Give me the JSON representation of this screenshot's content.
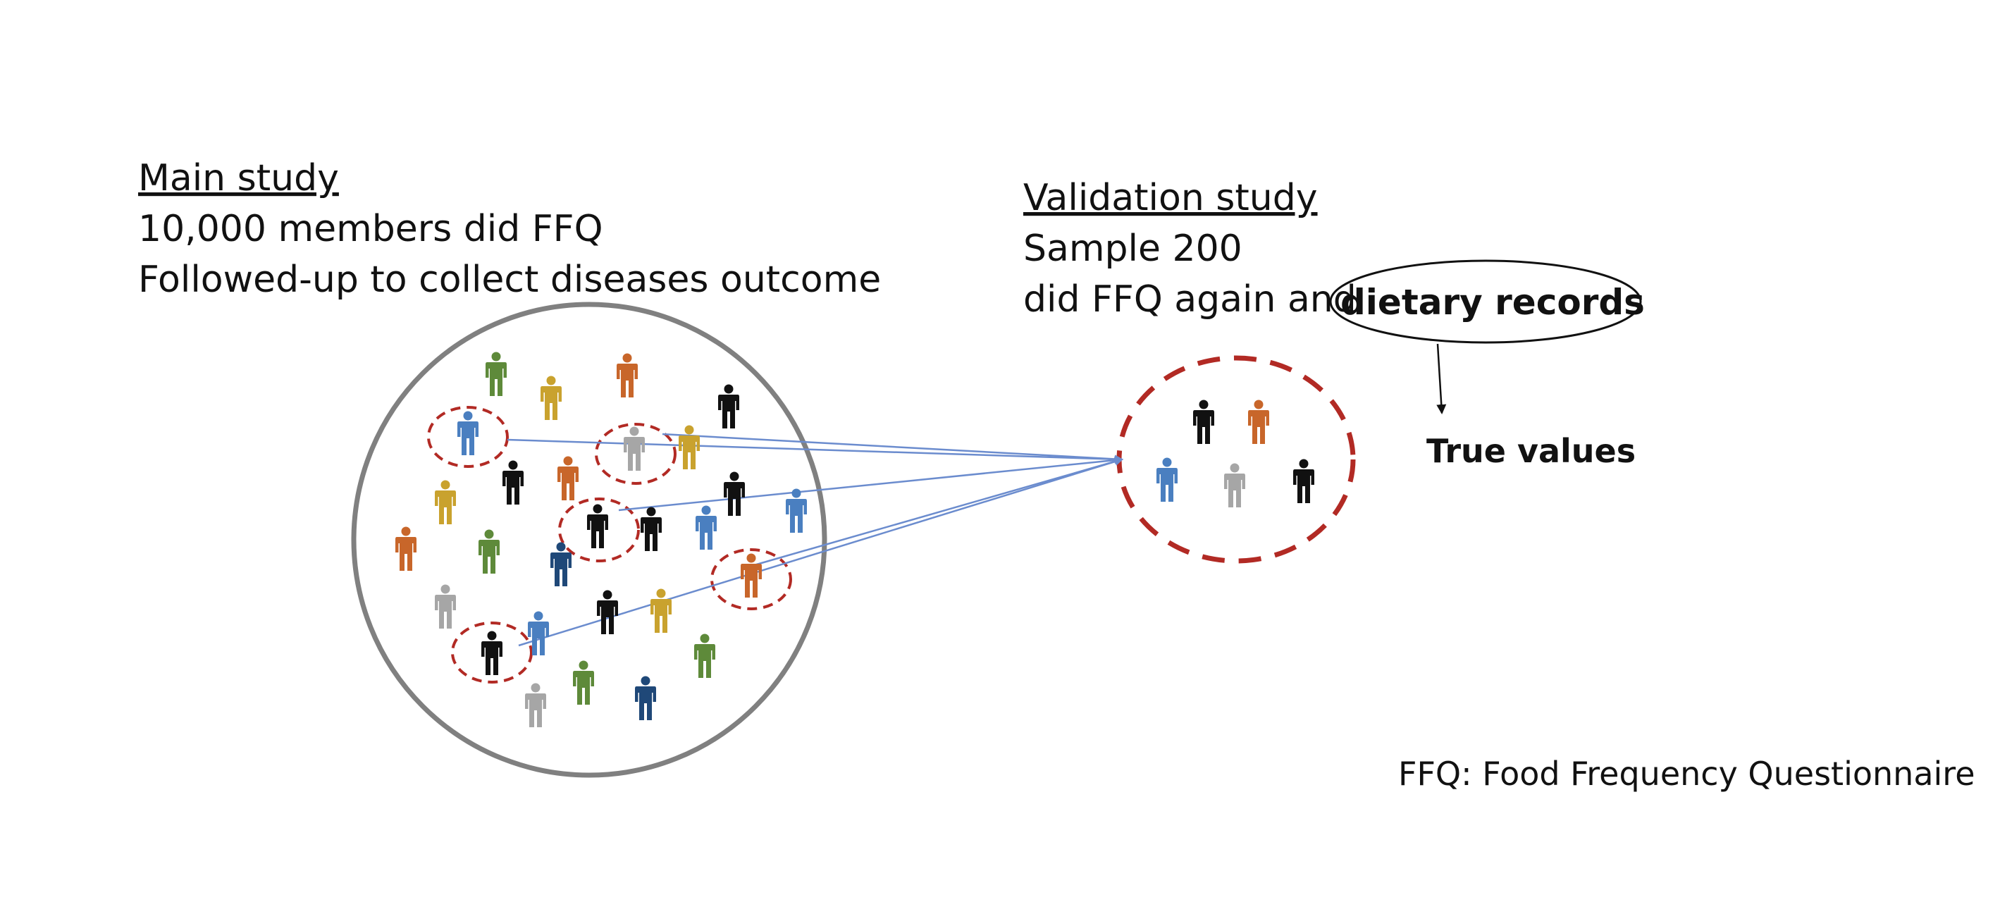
{
  "main_study": {
    "heading": "Main study",
    "line1": "10,000 members did FFQ",
    "line2": "Followed-up to collect diseases outcome"
  },
  "validation_study": {
    "heading": "Validation study",
    "line1": "Sample 200",
    "line2_prefix": "did FFQ again and",
    "highlight": "dietary records"
  },
  "true_values": "True values",
  "footnote": "FFQ: Food Frequency Questionnaire",
  "colors": {
    "population_circle": "#808080",
    "sample_circle": "#b22a24",
    "arrow": "#6b8cce",
    "person_black": "#111111",
    "person_blue": "#4a7fc0",
    "person_navy": "#1f4878",
    "person_orange": "#c8662a",
    "person_gold": "#c9a22e",
    "person_green": "#5e8a3a",
    "person_gray": "#a6a6a6"
  },
  "icons": [
    "person-icon"
  ]
}
